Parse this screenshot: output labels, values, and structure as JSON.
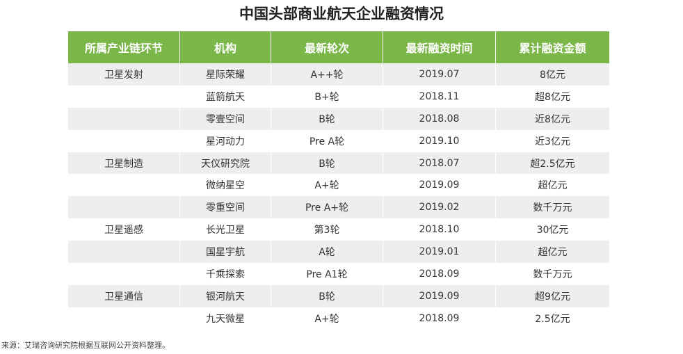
{
  "title": "中国头部商业航天企业融资情况",
  "table": {
    "headers": [
      "所属产业链环节",
      "机构",
      "最新轮次",
      "最新融资时间",
      "累计融资金额"
    ],
    "rows": [
      [
        "卫星发射",
        "星际荣耀",
        "A++轮",
        "2019.07",
        "8亿元"
      ],
      [
        "",
        "蓝箭航天",
        "B+轮",
        "2018.11",
        "超8亿元"
      ],
      [
        "",
        "零壹空间",
        "B轮",
        "2018.08",
        "近8亿元"
      ],
      [
        "",
        "星河动力",
        "Pre A轮",
        "2019.10",
        "近3亿元"
      ],
      [
        "卫星制造",
        "天仪研究院",
        "B轮",
        "2018.07",
        "超2.5亿元"
      ],
      [
        "",
        "微纳星空",
        "A+轮",
        "2019.09",
        "超亿元"
      ],
      [
        "",
        "零重空间",
        "Pre A+轮",
        "2019.02",
        "数千万元"
      ],
      [
        "卫星遥感",
        "长光卫星",
        "第3轮",
        "2018.10",
        "30亿元"
      ],
      [
        "",
        "国星宇航",
        "A轮",
        "2019.01",
        "超亿元"
      ],
      [
        "",
        "千乘探索",
        "Pre A1轮",
        "2018.09",
        "数千万元"
      ],
      [
        "卫星通信",
        "银河航天",
        "B轮",
        "2019.09",
        "超9亿元"
      ],
      [
        "",
        "九天微星",
        "A+轮",
        "2018.09",
        "2.5亿元"
      ]
    ]
  },
  "source": "来源：艾瑞咨询研究院根据互联网公开资料整理。",
  "colors": {
    "header_bg": "#7ab648",
    "header_text": "#ffffff",
    "stripe": "#eeeeee"
  }
}
